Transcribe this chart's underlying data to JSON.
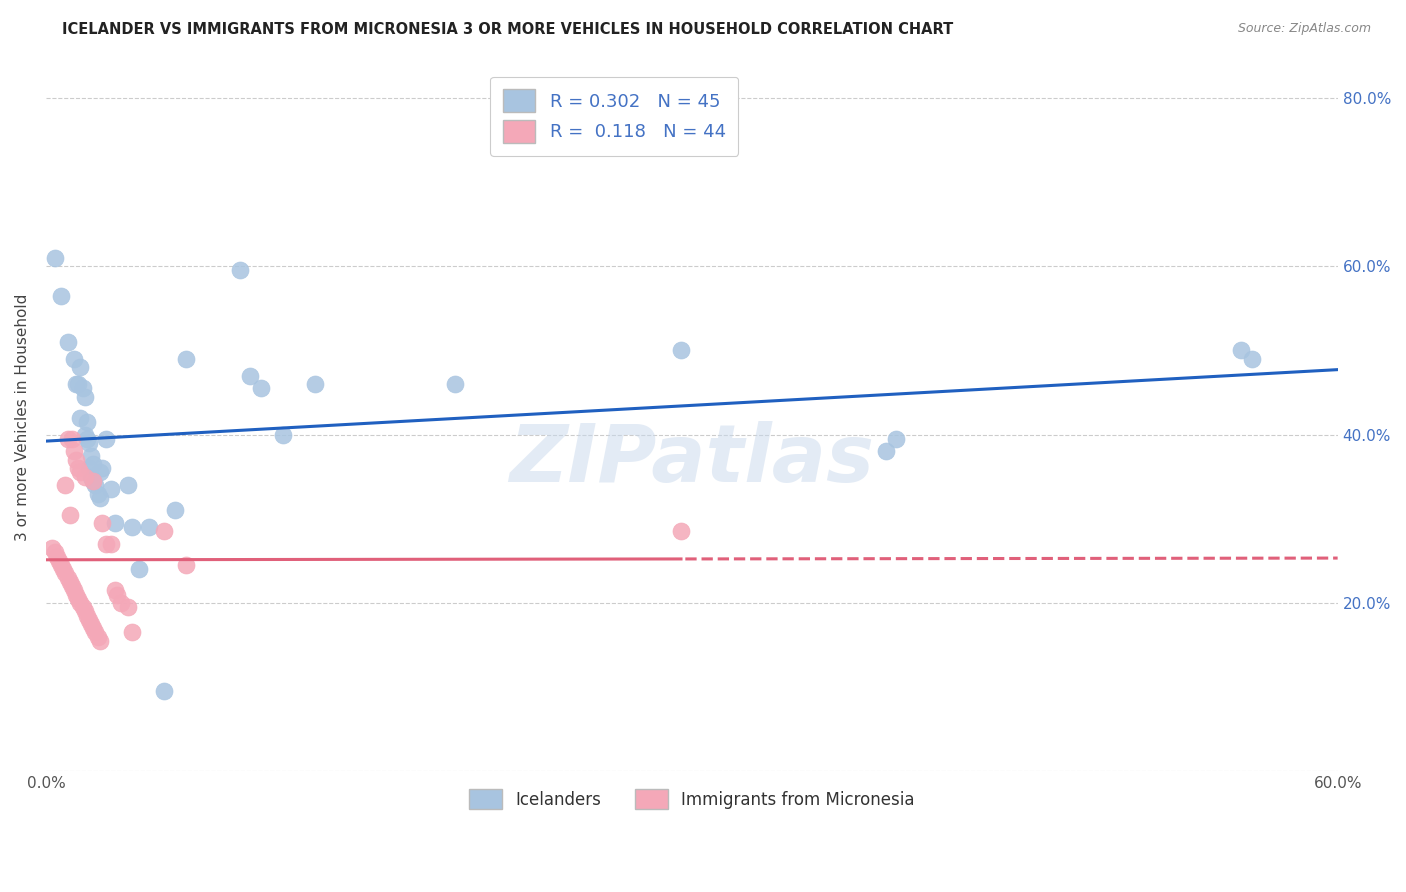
{
  "title": "ICELANDER VS IMMIGRANTS FROM MICRONESIA 3 OR MORE VEHICLES IN HOUSEHOLD CORRELATION CHART",
  "source": "Source: ZipAtlas.com",
  "ylabel": "3 or more Vehicles in Household",
  "xlim": [
    0.0,
    0.6
  ],
  "ylim": [
    0.0,
    0.84
  ],
  "x_ticks": [
    0.0,
    0.1,
    0.2,
    0.3,
    0.4,
    0.5,
    0.6
  ],
  "x_tick_labels": [
    "0.0%",
    "",
    "",
    "",
    "",
    "",
    "60.0%"
  ],
  "y_ticks": [
    0.0,
    0.2,
    0.4,
    0.6,
    0.8
  ],
  "y_tick_labels_right": [
    "",
    "20.0%",
    "40.0%",
    "60.0%",
    "80.0%"
  ],
  "blue_R": 0.302,
  "blue_N": 45,
  "pink_R": 0.118,
  "pink_N": 44,
  "blue_color": "#a8c4e0",
  "pink_color": "#f4a8b8",
  "blue_line_color": "#2060c0",
  "pink_line_color": "#e0607a",
  "legend_label_blue": "Icelanders",
  "legend_label_pink": "Immigrants from Micronesia",
  "blue_scatter_x": [
    0.004,
    0.007,
    0.01,
    0.013,
    0.014,
    0.015,
    0.016,
    0.016,
    0.017,
    0.018,
    0.018,
    0.019,
    0.019,
    0.02,
    0.02,
    0.021,
    0.021,
    0.022,
    0.022,
    0.023,
    0.024,
    0.025,
    0.025,
    0.026,
    0.028,
    0.03,
    0.032,
    0.038,
    0.04,
    0.043,
    0.048,
    0.055,
    0.06,
    0.065,
    0.09,
    0.095,
    0.1,
    0.11,
    0.125,
    0.19,
    0.295,
    0.39,
    0.395,
    0.555,
    0.56
  ],
  "blue_scatter_y": [
    0.61,
    0.565,
    0.51,
    0.49,
    0.46,
    0.46,
    0.42,
    0.48,
    0.455,
    0.445,
    0.4,
    0.395,
    0.415,
    0.39,
    0.36,
    0.375,
    0.35,
    0.345,
    0.365,
    0.34,
    0.33,
    0.325,
    0.355,
    0.36,
    0.395,
    0.335,
    0.295,
    0.34,
    0.29,
    0.24,
    0.29,
    0.095,
    0.31,
    0.49,
    0.595,
    0.47,
    0.455,
    0.4,
    0.46,
    0.46,
    0.5,
    0.38,
    0.395,
    0.5,
    0.49
  ],
  "pink_scatter_x": [
    0.003,
    0.004,
    0.005,
    0.006,
    0.007,
    0.008,
    0.009,
    0.009,
    0.01,
    0.01,
    0.011,
    0.011,
    0.012,
    0.012,
    0.013,
    0.013,
    0.014,
    0.014,
    0.015,
    0.015,
    0.016,
    0.016,
    0.017,
    0.018,
    0.018,
    0.019,
    0.02,
    0.021,
    0.022,
    0.022,
    0.023,
    0.024,
    0.025,
    0.026,
    0.028,
    0.03,
    0.032,
    0.033,
    0.035,
    0.038,
    0.04,
    0.055,
    0.065,
    0.295
  ],
  "pink_scatter_y": [
    0.265,
    0.26,
    0.255,
    0.25,
    0.245,
    0.24,
    0.235,
    0.34,
    0.23,
    0.395,
    0.225,
    0.305,
    0.22,
    0.395,
    0.215,
    0.38,
    0.21,
    0.37,
    0.205,
    0.36,
    0.2,
    0.355,
    0.195,
    0.35,
    0.19,
    0.185,
    0.18,
    0.175,
    0.345,
    0.17,
    0.165,
    0.16,
    0.155,
    0.295,
    0.27,
    0.27,
    0.215,
    0.21,
    0.2,
    0.195,
    0.165,
    0.285,
    0.245,
    0.285
  ],
  "watermark_text": "ZIPatlas",
  "background_color": "#ffffff"
}
